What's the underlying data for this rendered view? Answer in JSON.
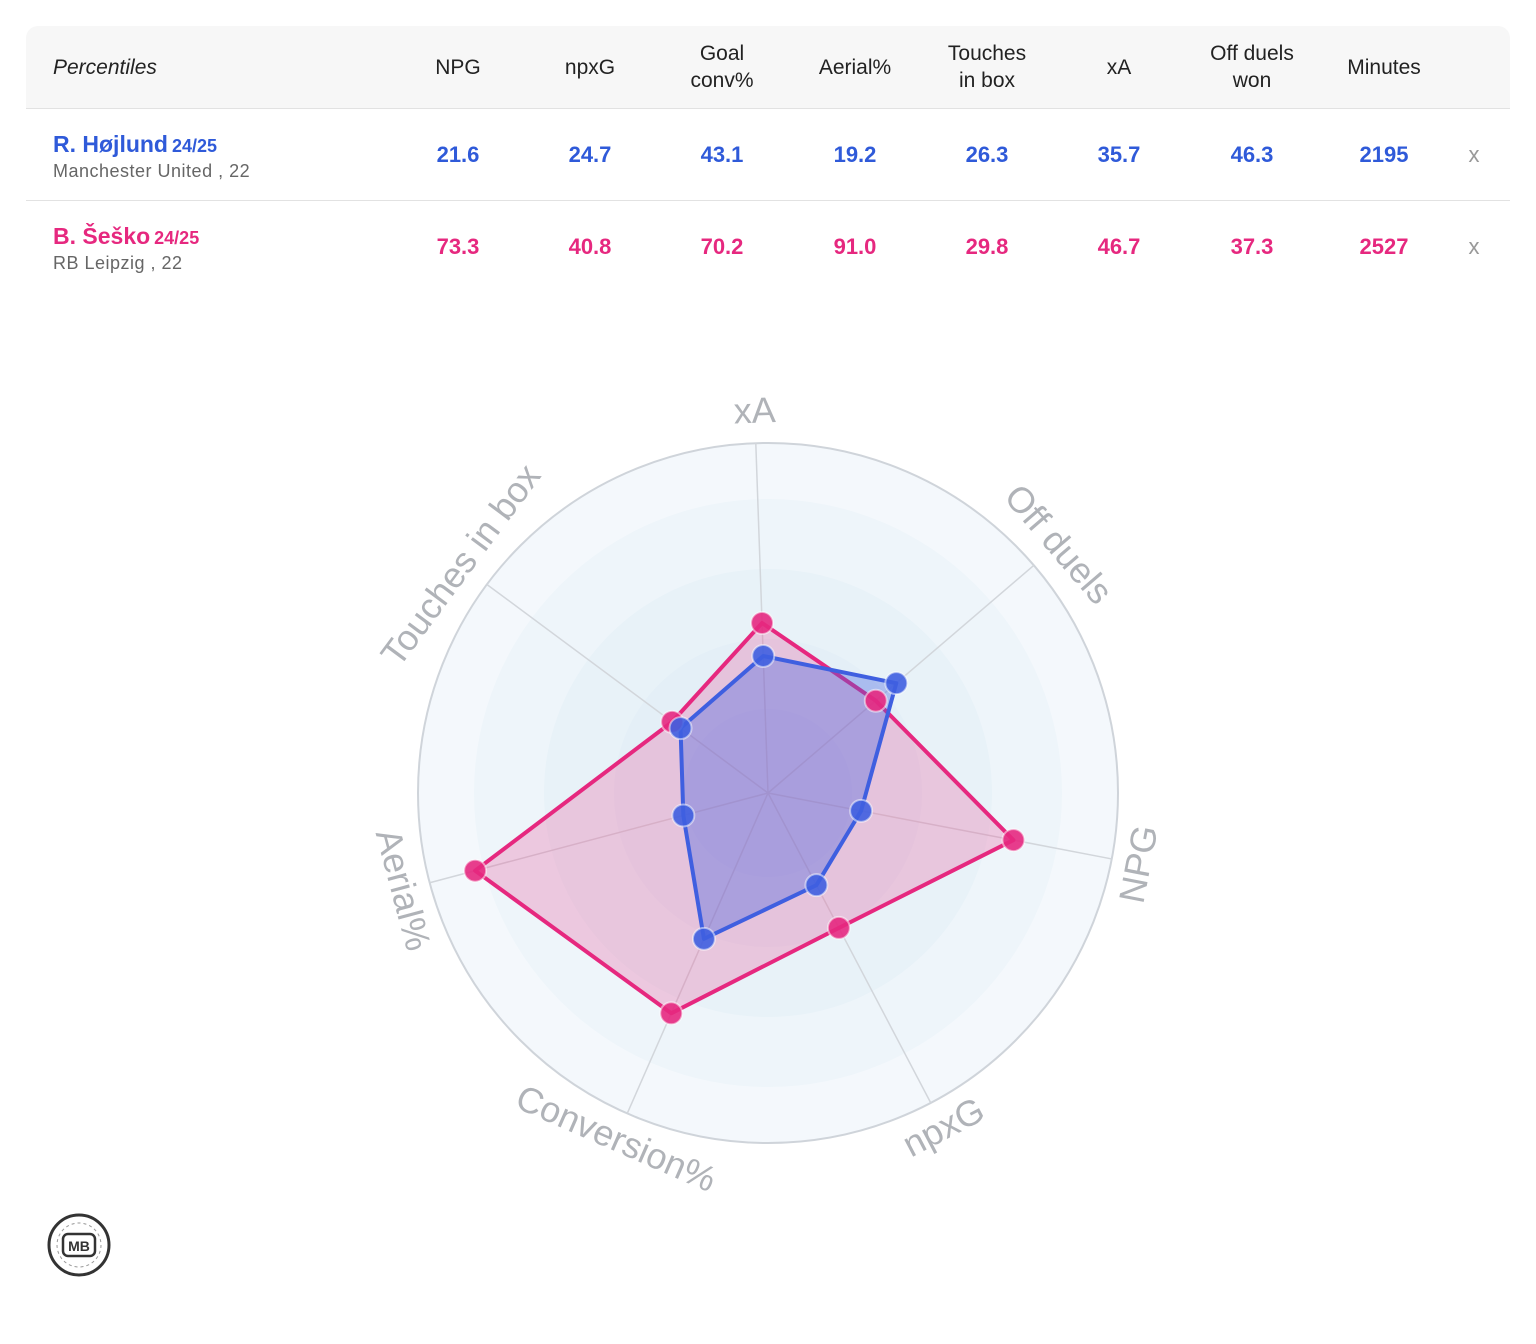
{
  "table": {
    "header_label": "Percentiles",
    "columns": [
      "NPG",
      "npxG",
      "Goal\nconv%",
      "Aerial%",
      "Touches\nin box",
      "xA",
      "Off duels\nwon",
      "Minutes"
    ],
    "remove_symbol": "x"
  },
  "players": [
    {
      "name": "R. Højlund",
      "season": "24/25",
      "club": "Manchester United , 22",
      "color": "#3f5fe0",
      "values": [
        "21.6",
        "24.7",
        "43.1",
        "19.2",
        "26.3",
        "35.7",
        "46.3",
        "2195"
      ]
    },
    {
      "name": "B. Šeško",
      "season": "24/25",
      "club": "RB Leipzig , 22",
      "color": "#e6287f",
      "values": [
        "73.3",
        "40.8",
        "70.2",
        "91.0",
        "29.8",
        "46.7",
        "37.3",
        "2527"
      ]
    }
  ],
  "chart_data": {
    "type": "radar",
    "axes": [
      "xA",
      "Off duels",
      "NPG",
      "npxG",
      "Conversion%",
      "Aerial%",
      "Touches in box"
    ],
    "range": [
      0,
      100
    ],
    "series": [
      {
        "name": "R. Højlund",
        "color": "#3f5fe0",
        "values": [
          35.7,
          46.3,
          21.6,
          24.7,
          43.1,
          19.2,
          26.3
        ]
      },
      {
        "name": "B. Šeško",
        "color": "#e6287f",
        "values": [
          46.7,
          37.3,
          73.3,
          40.8,
          70.2,
          91.0,
          29.8
        ]
      }
    ]
  },
  "logo_text": "MB"
}
